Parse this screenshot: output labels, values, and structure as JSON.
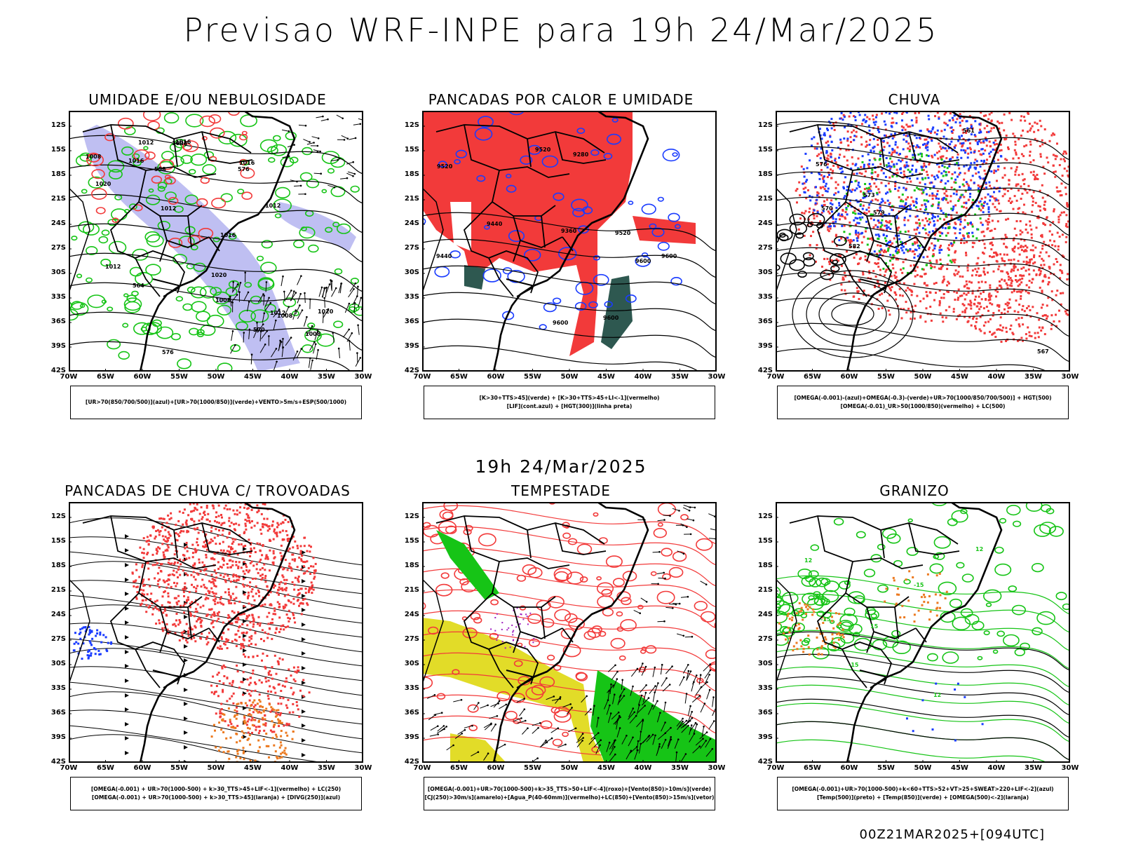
{
  "title": "Previsao WRF-INPE  para 19h 24/Mar/2025",
  "subtitle": "19h 24/Mar/2025",
  "footer": "00Z21MAR2025+[094UTC]",
  "axes": {
    "lat_labels": [
      "12S",
      "15S",
      "18S",
      "21S",
      "24S",
      "27S",
      "30S",
      "33S",
      "36S",
      "39S",
      "42S"
    ],
    "lon_labels": [
      "70W",
      "65W",
      "60W",
      "55W",
      "50W",
      "45W",
      "40W",
      "35W",
      "30W"
    ]
  },
  "colors": {
    "red": "#f23a3a",
    "green": "#16c416",
    "blue": "#1a3cff",
    "lavender": "#b4b4f0",
    "dark_teal": "#2e5850",
    "yellow": "#e2dc28",
    "orange": "#ec7a20",
    "purple": "#a020c0"
  },
  "panels": [
    {
      "id": "umidade",
      "title": "UMIDADE E/OU NEBULOSIDADE",
      "legend": [
        "[UR>70(850/700/500)](azul)+[UR>70(1000/850)](verde)+VENTO>5m/s+ESP(500/1000)"
      ],
      "contour_labels": [
        "1008",
        "1008",
        "1012",
        "1016",
        "1008",
        "1012",
        "1008",
        "1012",
        "1012",
        "1016",
        "1020",
        "1016",
        "1020",
        "1020",
        "1008",
        "1012",
        "1016",
        "576",
        "576",
        "570",
        "564",
        "558"
      ]
    },
    {
      "id": "pancadas-calor",
      "title": "PANCADAS POR CALOR E UMIDADE",
      "legend": [
        "[K>30+TTS>45](verde) + [K>30+TTS>45+LI<-1](vermelho)",
        "[LIF](cont.azul) + [HGT(300)](linha preta)"
      ],
      "contour_labels": [
        "9600",
        "9600",
        "9600",
        "9600",
        "9520",
        "9520",
        "9520",
        "9440",
        "9440",
        "9360",
        "9280"
      ]
    },
    {
      "id": "chuva",
      "title": "CHUVA",
      "legend": [
        "[OMEGA(-0.001)-(azul)+OMEGA(-0.3)-(verde)+UR>70(1000/850/700/500)] + HGT(500)",
        "[OMEGA(-0.01)_UR>50(1000/850)(vermelho) + LC(500)"
      ],
      "contour_labels": [
        "582",
        "579",
        "576",
        "573",
        "570",
        "567",
        "561"
      ]
    },
    {
      "id": "trovoadas",
      "title": "PANCADAS DE CHUVA C/ TROVOADAS",
      "legend": [
        "[OMEGA(-0.001) + UR>70(1000-500) + k>30_TTS>45+LIF<-1](vermelho) + LC(250)",
        "[OMEGA(-0.001) + UR>70(1000-500) + k>30_TTS>45](laranja) + [DIVG(250)](azul)"
      ],
      "contour_labels": []
    },
    {
      "id": "tempestade",
      "title": "TEMPESTADE",
      "legend": [
        "[OMEGA(-0.001)+UR>70(1000-500)+k>35_TTS>50+LIF<-4](roxo)+[Vento(850)>10m/s](verde)",
        "[CJ(250)>30m/s](amarelo)+[Agua_P(40-60mm)](vermelho)+LC(850)+[Vento(850)>15m/s](vetor)"
      ],
      "contour_labels": []
    },
    {
      "id": "granizo",
      "title": "GRANIZO",
      "legend": [
        "[OMEGA(-0.001)+UR>70(1000-500)+k<60+TTS>52+VT>25+SWEAT>220+LIF<-2](azul)",
        "[Temp(500)](preto) + [Temp(850)](verde) + [OMEGA(500)<-2](laranja)"
      ],
      "contour_labels": [
        "-15",
        "-15",
        "12",
        "12",
        "15",
        "-15",
        "12"
      ]
    }
  ]
}
